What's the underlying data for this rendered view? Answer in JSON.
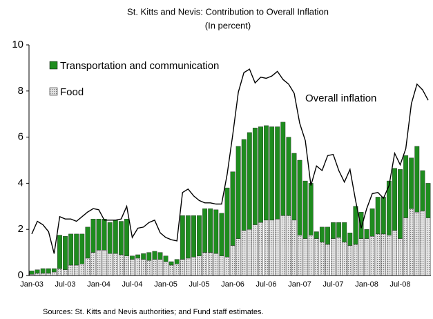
{
  "chart_data": {
    "type": "bar",
    "stacked": true,
    "title": "St. Kitts and Nevis: Contribution to Overall Inflation",
    "subtitle": "(In percent)",
    "source": "Sources: St. Kitts and Nevis authorities; and Fund staff estimates.",
    "categories": [
      "Jan-03",
      null,
      null,
      null,
      null,
      null,
      "Jul-03",
      null,
      null,
      null,
      null,
      null,
      "Jan-04",
      null,
      null,
      null,
      null,
      null,
      "Jul-04",
      null,
      null,
      null,
      null,
      null,
      "Jan-05",
      null,
      null,
      null,
      null,
      null,
      "Jul-05",
      null,
      null,
      null,
      null,
      null,
      "Jan-06",
      null,
      null,
      null,
      null,
      null,
      "Jul-06",
      null,
      null,
      null,
      null,
      null,
      "Jan-07",
      null,
      null,
      null,
      null,
      null,
      "Jul-07",
      null,
      null,
      null,
      null,
      null,
      "Jan-08",
      null,
      null,
      null,
      null,
      null,
      "Jul-08",
      null,
      null,
      null,
      null,
      null
    ],
    "series": [
      {
        "name": "Food",
        "color": "#c8c8c8",
        "values": [
          0.05,
          0.1,
          0.1,
          0.1,
          0.15,
          0.3,
          0.25,
          0.45,
          0.45,
          0.5,
          0.75,
          1.0,
          1.1,
          1.1,
          0.95,
          0.95,
          0.9,
          0.85,
          0.7,
          0.75,
          0.7,
          0.65,
          0.7,
          0.7,
          0.6,
          0.45,
          0.5,
          0.7,
          0.75,
          0.8,
          0.85,
          1.0,
          1.0,
          0.95,
          0.85,
          0.8,
          1.3,
          1.6,
          1.95,
          2.0,
          2.2,
          2.3,
          2.4,
          2.4,
          2.45,
          2.6,
          2.6,
          2.4,
          1.75,
          1.6,
          1.75,
          1.6,
          1.45,
          1.35,
          1.6,
          1.65,
          1.45,
          1.3,
          1.35,
          1.6,
          1.6,
          1.7,
          1.8,
          1.8,
          1.75,
          1.95,
          1.6,
          2.5,
          2.9,
          2.75,
          2.8,
          2.5
        ]
      },
      {
        "name": "Transportation and communication",
        "color": "#1e8c1e",
        "values": [
          0.15,
          0.15,
          0.2,
          0.2,
          0.15,
          1.45,
          1.45,
          1.35,
          1.35,
          1.3,
          1.35,
          1.45,
          1.35,
          1.35,
          1.35,
          1.45,
          1.45,
          1.6,
          0.15,
          0.15,
          0.25,
          0.35,
          0.35,
          0.3,
          0.25,
          0.15,
          0.2,
          1.9,
          1.85,
          1.8,
          1.75,
          1.9,
          1.9,
          1.9,
          1.85,
          3.0,
          3.2,
          4.0,
          3.95,
          4.2,
          4.2,
          4.15,
          4.1,
          4.05,
          4.0,
          4.05,
          3.4,
          2.9,
          3.25,
          2.5,
          2.25,
          0.3,
          0.65,
          0.75,
          0.7,
          0.65,
          0.85,
          0.55,
          1.65,
          1.15,
          0.4,
          1.2,
          1.6,
          1.6,
          2.35,
          2.7,
          3.0,
          2.7,
          2.2,
          2.85,
          1.75,
          1.5
        ]
      },
      {
        "name": "Overall inflation",
        "type": "line",
        "color": "#000000",
        "values": [
          1.8,
          2.35,
          2.2,
          1.9,
          0.95,
          2.55,
          2.45,
          2.45,
          2.35,
          2.55,
          2.75,
          2.9,
          2.85,
          2.4,
          2.4,
          2.4,
          2.45,
          3.0,
          1.65,
          2.05,
          2.1,
          2.3,
          2.4,
          1.85,
          1.65,
          1.55,
          1.5,
          3.6,
          3.75,
          3.45,
          3.25,
          3.15,
          3.15,
          3.1,
          3.1,
          4.4,
          6.1,
          7.95,
          8.8,
          8.95,
          8.35,
          8.6,
          8.55,
          8.65,
          8.85,
          8.5,
          8.3,
          7.9,
          6.6,
          5.85,
          3.9,
          4.75,
          4.55,
          5.2,
          5.25,
          4.55,
          4.05,
          4.6,
          3.25,
          2.05,
          2.9,
          3.55,
          3.6,
          3.35,
          3.9,
          5.3,
          4.8,
          5.5,
          7.45,
          8.3,
          8.05,
          7.6
        ]
      }
    ],
    "ylim": [
      0,
      10
    ],
    "yticks": [
      0,
      2,
      4,
      6,
      8,
      10
    ],
    "grid": false
  }
}
